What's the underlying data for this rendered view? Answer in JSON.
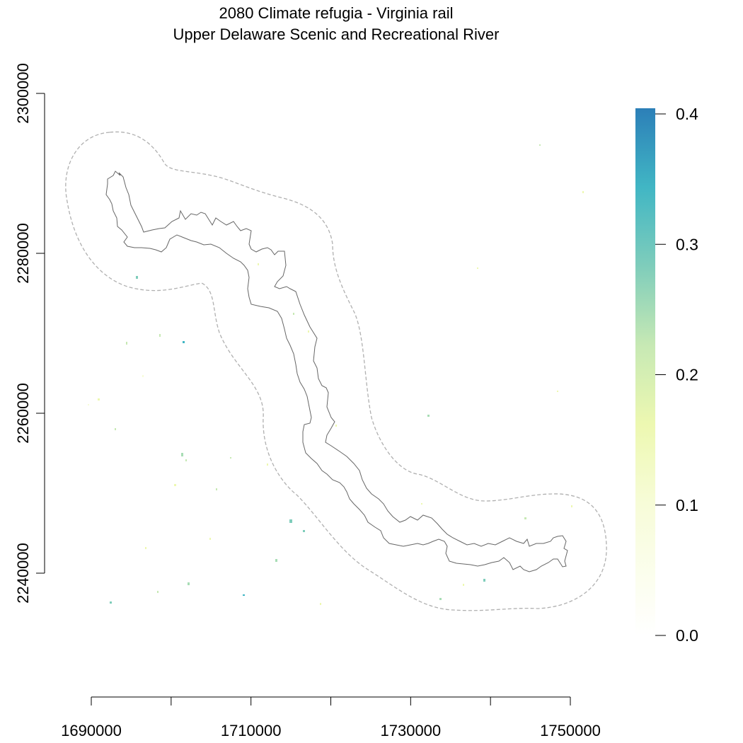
{
  "title": {
    "line1": "2080 Climate refugia - Virginia rail",
    "line2": "Upper Delaware Scenic and Recreational River"
  },
  "x_axis": {
    "range": [
      1690000,
      1750000
    ],
    "ticks": [
      1690000,
      1700000,
      1710000,
      1720000,
      1730000,
      1740000,
      1750000
    ],
    "labels": [
      "1690000",
      "1710000",
      "1730000",
      "1750000"
    ]
  },
  "y_axis": {
    "range": [
      2240000,
      2300000
    ],
    "ticks": [
      2240000,
      2260000,
      2280000,
      2300000
    ],
    "labels": [
      "2240000",
      "2260000",
      "2280000",
      "2300000"
    ]
  },
  "legend": {
    "min": 0.0,
    "max": 0.4,
    "labels": [
      "0.0",
      "0.1",
      "0.2",
      "0.3",
      "0.4"
    ],
    "color_stops": [
      "#ffffff",
      "#edf8b1",
      "#a8ddb5",
      "#7fcdbb",
      "#2c7fb8"
    ]
  },
  "map": {
    "park_boundary_color": "#555555",
    "buffer_boundary_color": "#b0b0b0"
  }
}
